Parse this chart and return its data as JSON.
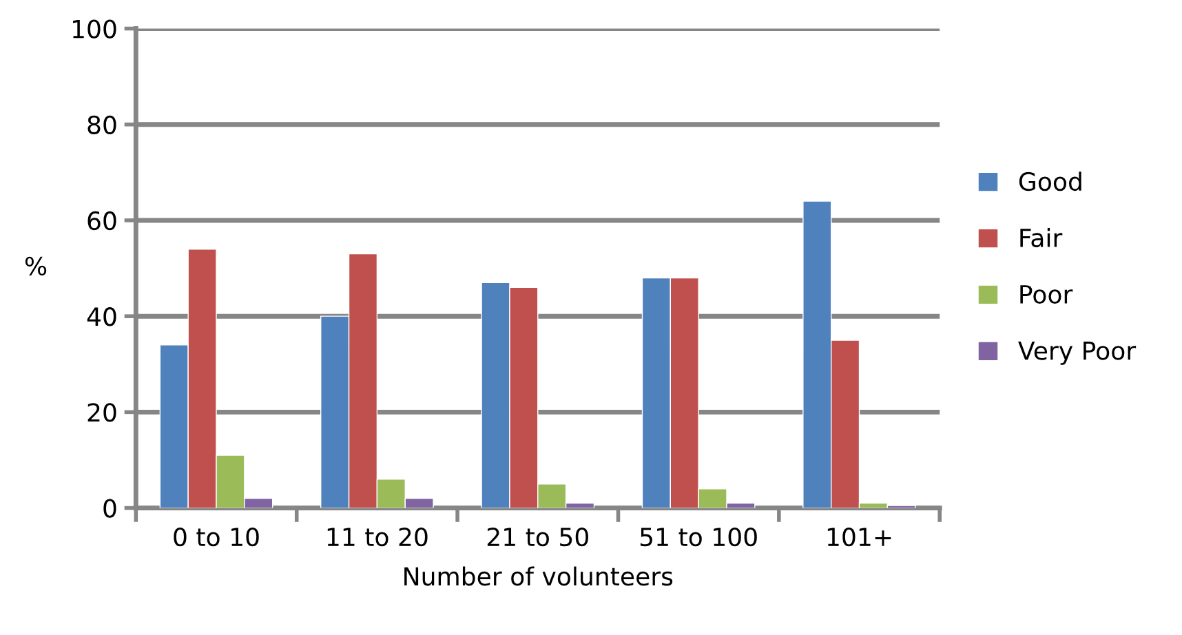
{
  "chart_data": {
    "type": "bar",
    "xlabel": "Number of volunteers",
    "ylabel": "%",
    "categories": [
      "0 to 10",
      "11 to 20",
      "21 to 50",
      "51 to 100",
      "101+"
    ],
    "series": [
      {
        "name": "Good",
        "color": "#4f81bd",
        "values": [
          34,
          40,
          47,
          48,
          64
        ]
      },
      {
        "name": "Fair",
        "color": "#c0504d",
        "values": [
          54,
          53,
          46,
          48,
          35
        ]
      },
      {
        "name": "Poor",
        "color": "#9bbb59",
        "values": [
          11,
          6,
          5,
          4,
          1
        ]
      },
      {
        "name": "Very Poor",
        "color": "#8064a2",
        "values": [
          2,
          2,
          1,
          1,
          0.5
        ]
      }
    ],
    "ylim": [
      0,
      100
    ],
    "yticks": [
      0,
      20,
      40,
      60,
      80,
      100
    ],
    "grid": "y",
    "legend": "right"
  }
}
